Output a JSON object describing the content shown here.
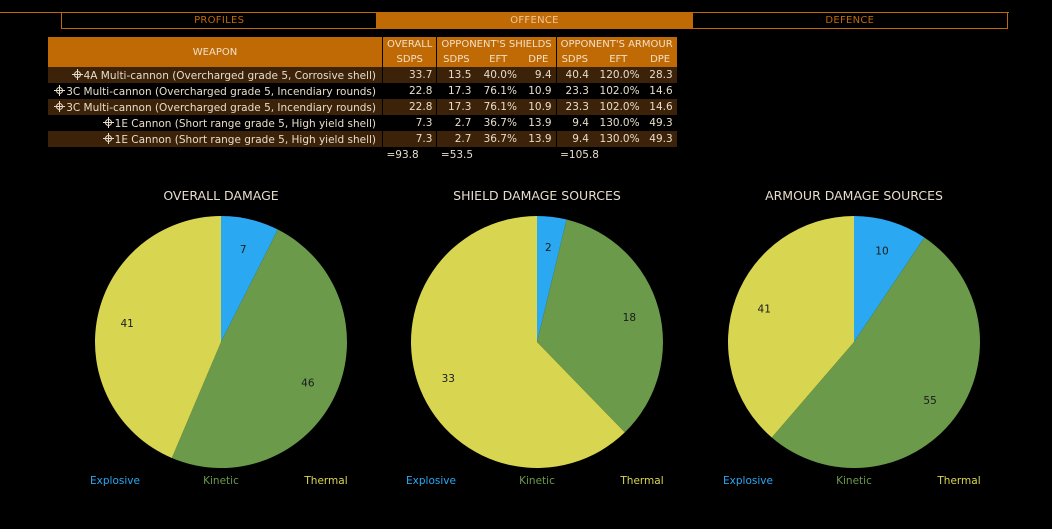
{
  "tabs": [
    {
      "label": "PROFILES",
      "active": false
    },
    {
      "label": "OFFENCE",
      "active": true
    },
    {
      "label": "DEFENCE",
      "active": false
    }
  ],
  "table": {
    "headers": {
      "weapon": "WEAPON",
      "overall": "OVERALL",
      "shields": "OPPONENT'S SHIELDS",
      "armour": "OPPONENT'S ARMOUR",
      "sub": [
        "SDPS",
        "SDPS",
        "EFT",
        "DPE",
        "SDPS",
        "EFT",
        "DPE"
      ]
    },
    "rows": [
      {
        "weapon": "4A Multi-cannon (Overcharged grade 5, Corrosive shell)",
        "cells": [
          "33.7",
          "13.5",
          "40.0%",
          "9.4",
          "40.4",
          "120.0%",
          "28.3"
        ]
      },
      {
        "weapon": "3C Multi-cannon (Overcharged grade 5, Incendiary rounds)",
        "cells": [
          "22.8",
          "17.3",
          "76.1%",
          "10.9",
          "23.3",
          "102.0%",
          "14.6"
        ]
      },
      {
        "weapon": "3C Multi-cannon (Overcharged grade 5, Incendiary rounds)",
        "cells": [
          "22.8",
          "17.3",
          "76.1%",
          "10.9",
          "23.3",
          "102.0%",
          "14.6"
        ]
      },
      {
        "weapon": "1E Cannon (Short range grade 5, High yield shell)",
        "cells": [
          "7.3",
          "2.7",
          "36.7%",
          "13.9",
          "9.4",
          "130.0%",
          "49.3"
        ]
      },
      {
        "weapon": "1E Cannon (Short range grade 5, High yield shell)",
        "cells": [
          "7.3",
          "2.7",
          "36.7%",
          "13.9",
          "9.4",
          "130.0%",
          "49.3"
        ]
      }
    ],
    "totals": {
      "overall": "=93.8",
      "shields": "=53.5",
      "armour": "=105.8"
    }
  },
  "colors": {
    "explosive": "#2aa8f2",
    "kinetic": "#6a9a4a",
    "thermal": "#d8d650",
    "accent": "#c06a05"
  },
  "chart_data": [
    {
      "type": "pie",
      "title": "OVERALL DAMAGE",
      "categories": [
        "Explosive",
        "Kinetic",
        "Thermal"
      ],
      "values": [
        7,
        46,
        41
      ],
      "legend": "bottom"
    },
    {
      "type": "pie",
      "title": "SHIELD DAMAGE SOURCES",
      "categories": [
        "Explosive",
        "Kinetic",
        "Thermal"
      ],
      "values": [
        2,
        18,
        33
      ],
      "legend": "bottom"
    },
    {
      "type": "pie",
      "title": "ARMOUR DAMAGE SOURCES",
      "categories": [
        "Explosive",
        "Kinetic",
        "Thermal"
      ],
      "values": [
        10,
        55,
        41
      ],
      "legend": "bottom"
    }
  ]
}
